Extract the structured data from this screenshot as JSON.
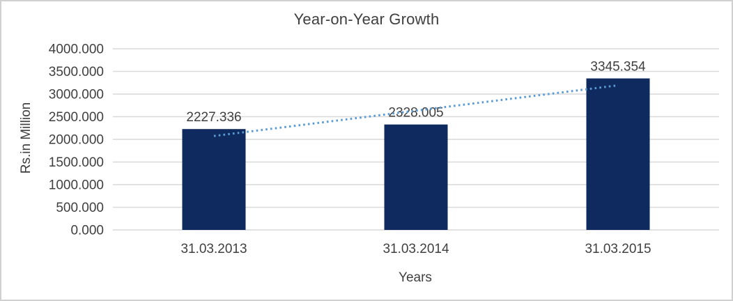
{
  "chart_data": {
    "type": "bar",
    "title": "Year-on-Year Growth",
    "xlabel": "Years",
    "ylabel": "Rs.in Million",
    "categories": [
      "31.03.2013",
      "31.03.2014",
      "31.03.2015"
    ],
    "values": [
      2227.336,
      2328.005,
      3345.354
    ],
    "data_labels": [
      "2227.336",
      "2328.005",
      "3345.354"
    ],
    "ylim": [
      0,
      4000
    ],
    "ytick_step": 500,
    "ytick_labels": [
      "0.000",
      "500.000",
      "1000.000",
      "1500.000",
      "2000.000",
      "2500.000",
      "3000.000",
      "3500.000",
      "4000.000"
    ],
    "grid": true,
    "legend": "none",
    "trendline": {
      "type": "linear",
      "style": "dotted"
    },
    "colors": {
      "bar": "#0e2a5e",
      "trendline": "#5b9bd5",
      "gridline": "#d9d9d9",
      "text": "#3f3f3f",
      "frame_border": "#d0d0d0",
      "background": "#ffffff"
    }
  }
}
